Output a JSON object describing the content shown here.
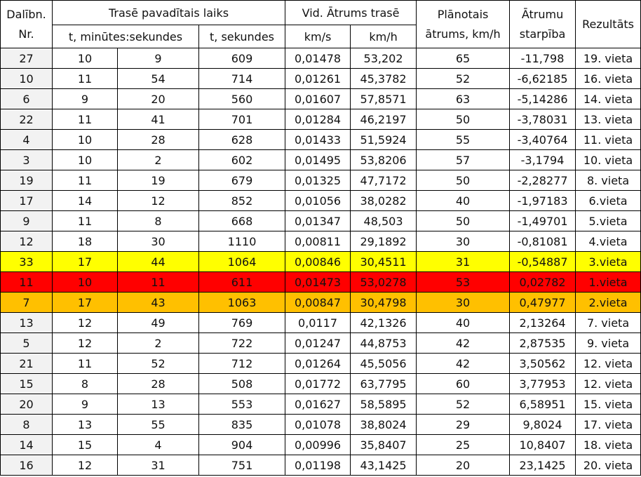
{
  "header": {
    "nr_label": "Dalībn. Nr.",
    "time_group": "Trasē pavadītais laiks",
    "time_min_sec": "t, minūtes:sekundes",
    "time_sec": "t, sekundes",
    "speed_group": "Vid. Ātrums trasē",
    "speed_kms": "km/s",
    "speed_kmh": "km/h",
    "planned": "Plānotais ātrums, km/h",
    "diff": "Ātrumu starpība",
    "result": "Rezultāts"
  },
  "highlight_colors": {
    "yellow": "#ffff00",
    "red": "#ff0000",
    "orange": "#ffc000"
  },
  "rows": [
    {
      "nr": "27",
      "min": "10",
      "sec": "9",
      "t_sec": "609",
      "kms": "0,01478",
      "kmh": "53,202",
      "planned": "65",
      "diff": "-11,798",
      "result": "19. vieta"
    },
    {
      "nr": "10",
      "min": "11",
      "sec": "54",
      "t_sec": "714",
      "kms": "0,01261",
      "kmh": "45,3782",
      "planned": "52",
      "diff": "-6,62185",
      "result": "16. vieta"
    },
    {
      "nr": "6",
      "min": "9",
      "sec": "20",
      "t_sec": "560",
      "kms": "0,01607",
      "kmh": "57,8571",
      "planned": "63",
      "diff": "-5,14286",
      "result": "14. vieta"
    },
    {
      "nr": "22",
      "min": "11",
      "sec": "41",
      "t_sec": "701",
      "kms": "0,01284",
      "kmh": "46,2197",
      "planned": "50",
      "diff": "-3,78031",
      "result": "13. vieta"
    },
    {
      "nr": "4",
      "min": "10",
      "sec": "28",
      "t_sec": "628",
      "kms": "0,01433",
      "kmh": "51,5924",
      "planned": "55",
      "diff": "-3,40764",
      "result": "11. vieta"
    },
    {
      "nr": "3",
      "min": "10",
      "sec": "2",
      "t_sec": "602",
      "kms": "0,01495",
      "kmh": "53,8206",
      "planned": "57",
      "diff": "-3,1794",
      "result": "10. vieta"
    },
    {
      "nr": "19",
      "min": "11",
      "sec": "19",
      "t_sec": "679",
      "kms": "0,01325",
      "kmh": "47,7172",
      "planned": "50",
      "diff": "-2,28277",
      "result": "8. vieta"
    },
    {
      "nr": "17",
      "min": "14",
      "sec": "12",
      "t_sec": "852",
      "kms": "0,01056",
      "kmh": "38,0282",
      "planned": "40",
      "diff": "-1,97183",
      "result": "6.vieta"
    },
    {
      "nr": "9",
      "min": "11",
      "sec": "8",
      "t_sec": "668",
      "kms": "0,01347",
      "kmh": "48,503",
      "planned": "50",
      "diff": "-1,49701",
      "result": "5.vieta"
    },
    {
      "nr": "12",
      "min": "18",
      "sec": "30",
      "t_sec": "1110",
      "kms": "0,00811",
      "kmh": "29,1892",
      "planned": "30",
      "diff": "-0,81081",
      "result": "4.vieta"
    },
    {
      "nr": "33",
      "min": "17",
      "sec": "44",
      "t_sec": "1064",
      "kms": "0,00846",
      "kmh": "30,4511",
      "planned": "31",
      "diff": "-0,54887",
      "result": "3.vieta",
      "highlight": "yellow"
    },
    {
      "nr": "11",
      "min": "10",
      "sec": "11",
      "t_sec": "611",
      "kms": "0,01473",
      "kmh": "53,0278",
      "planned": "53",
      "diff": "0,02782",
      "result": "1.vieta",
      "highlight": "red"
    },
    {
      "nr": "7",
      "min": "17",
      "sec": "43",
      "t_sec": "1063",
      "kms": "0,00847",
      "kmh": "30,4798",
      "planned": "30",
      "diff": "0,47977",
      "result": "2.vieta",
      "highlight": "orange"
    },
    {
      "nr": "13",
      "min": "12",
      "sec": "49",
      "t_sec": "769",
      "kms": "0,0117",
      "kmh": "42,1326",
      "planned": "40",
      "diff": "2,13264",
      "result": "7. vieta"
    },
    {
      "nr": "5",
      "min": "12",
      "sec": "2",
      "t_sec": "722",
      "kms": "0,01247",
      "kmh": "44,8753",
      "planned": "42",
      "diff": "2,87535",
      "result": "9. vieta"
    },
    {
      "nr": "21",
      "min": "11",
      "sec": "52",
      "t_sec": "712",
      "kms": "0,01264",
      "kmh": "45,5056",
      "planned": "42",
      "diff": "3,50562",
      "result": "12. vieta"
    },
    {
      "nr": "15",
      "min": "8",
      "sec": "28",
      "t_sec": "508",
      "kms": "0,01772",
      "kmh": "63,7795",
      "planned": "60",
      "diff": "3,77953",
      "result": "12. vieta"
    },
    {
      "nr": "20",
      "min": "9",
      "sec": "13",
      "t_sec": "553",
      "kms": "0,01627",
      "kmh": "58,5895",
      "planned": "52",
      "diff": "6,58951",
      "result": "15. vieta"
    },
    {
      "nr": "8",
      "min": "13",
      "sec": "55",
      "t_sec": "835",
      "kms": "0,01078",
      "kmh": "38,8024",
      "planned": "29",
      "diff": "9,8024",
      "result": "17. vieta"
    },
    {
      "nr": "14",
      "min": "15",
      "sec": "4",
      "t_sec": "904",
      "kms": "0,00996",
      "kmh": "35,8407",
      "planned": "25",
      "diff": "10,8407",
      "result": "18. vieta"
    },
    {
      "nr": "16",
      "min": "12",
      "sec": "31",
      "t_sec": "751",
      "kms": "0,01198",
      "kmh": "43,1425",
      "planned": "20",
      "diff": "23,1425",
      "result": "20. vieta"
    }
  ]
}
